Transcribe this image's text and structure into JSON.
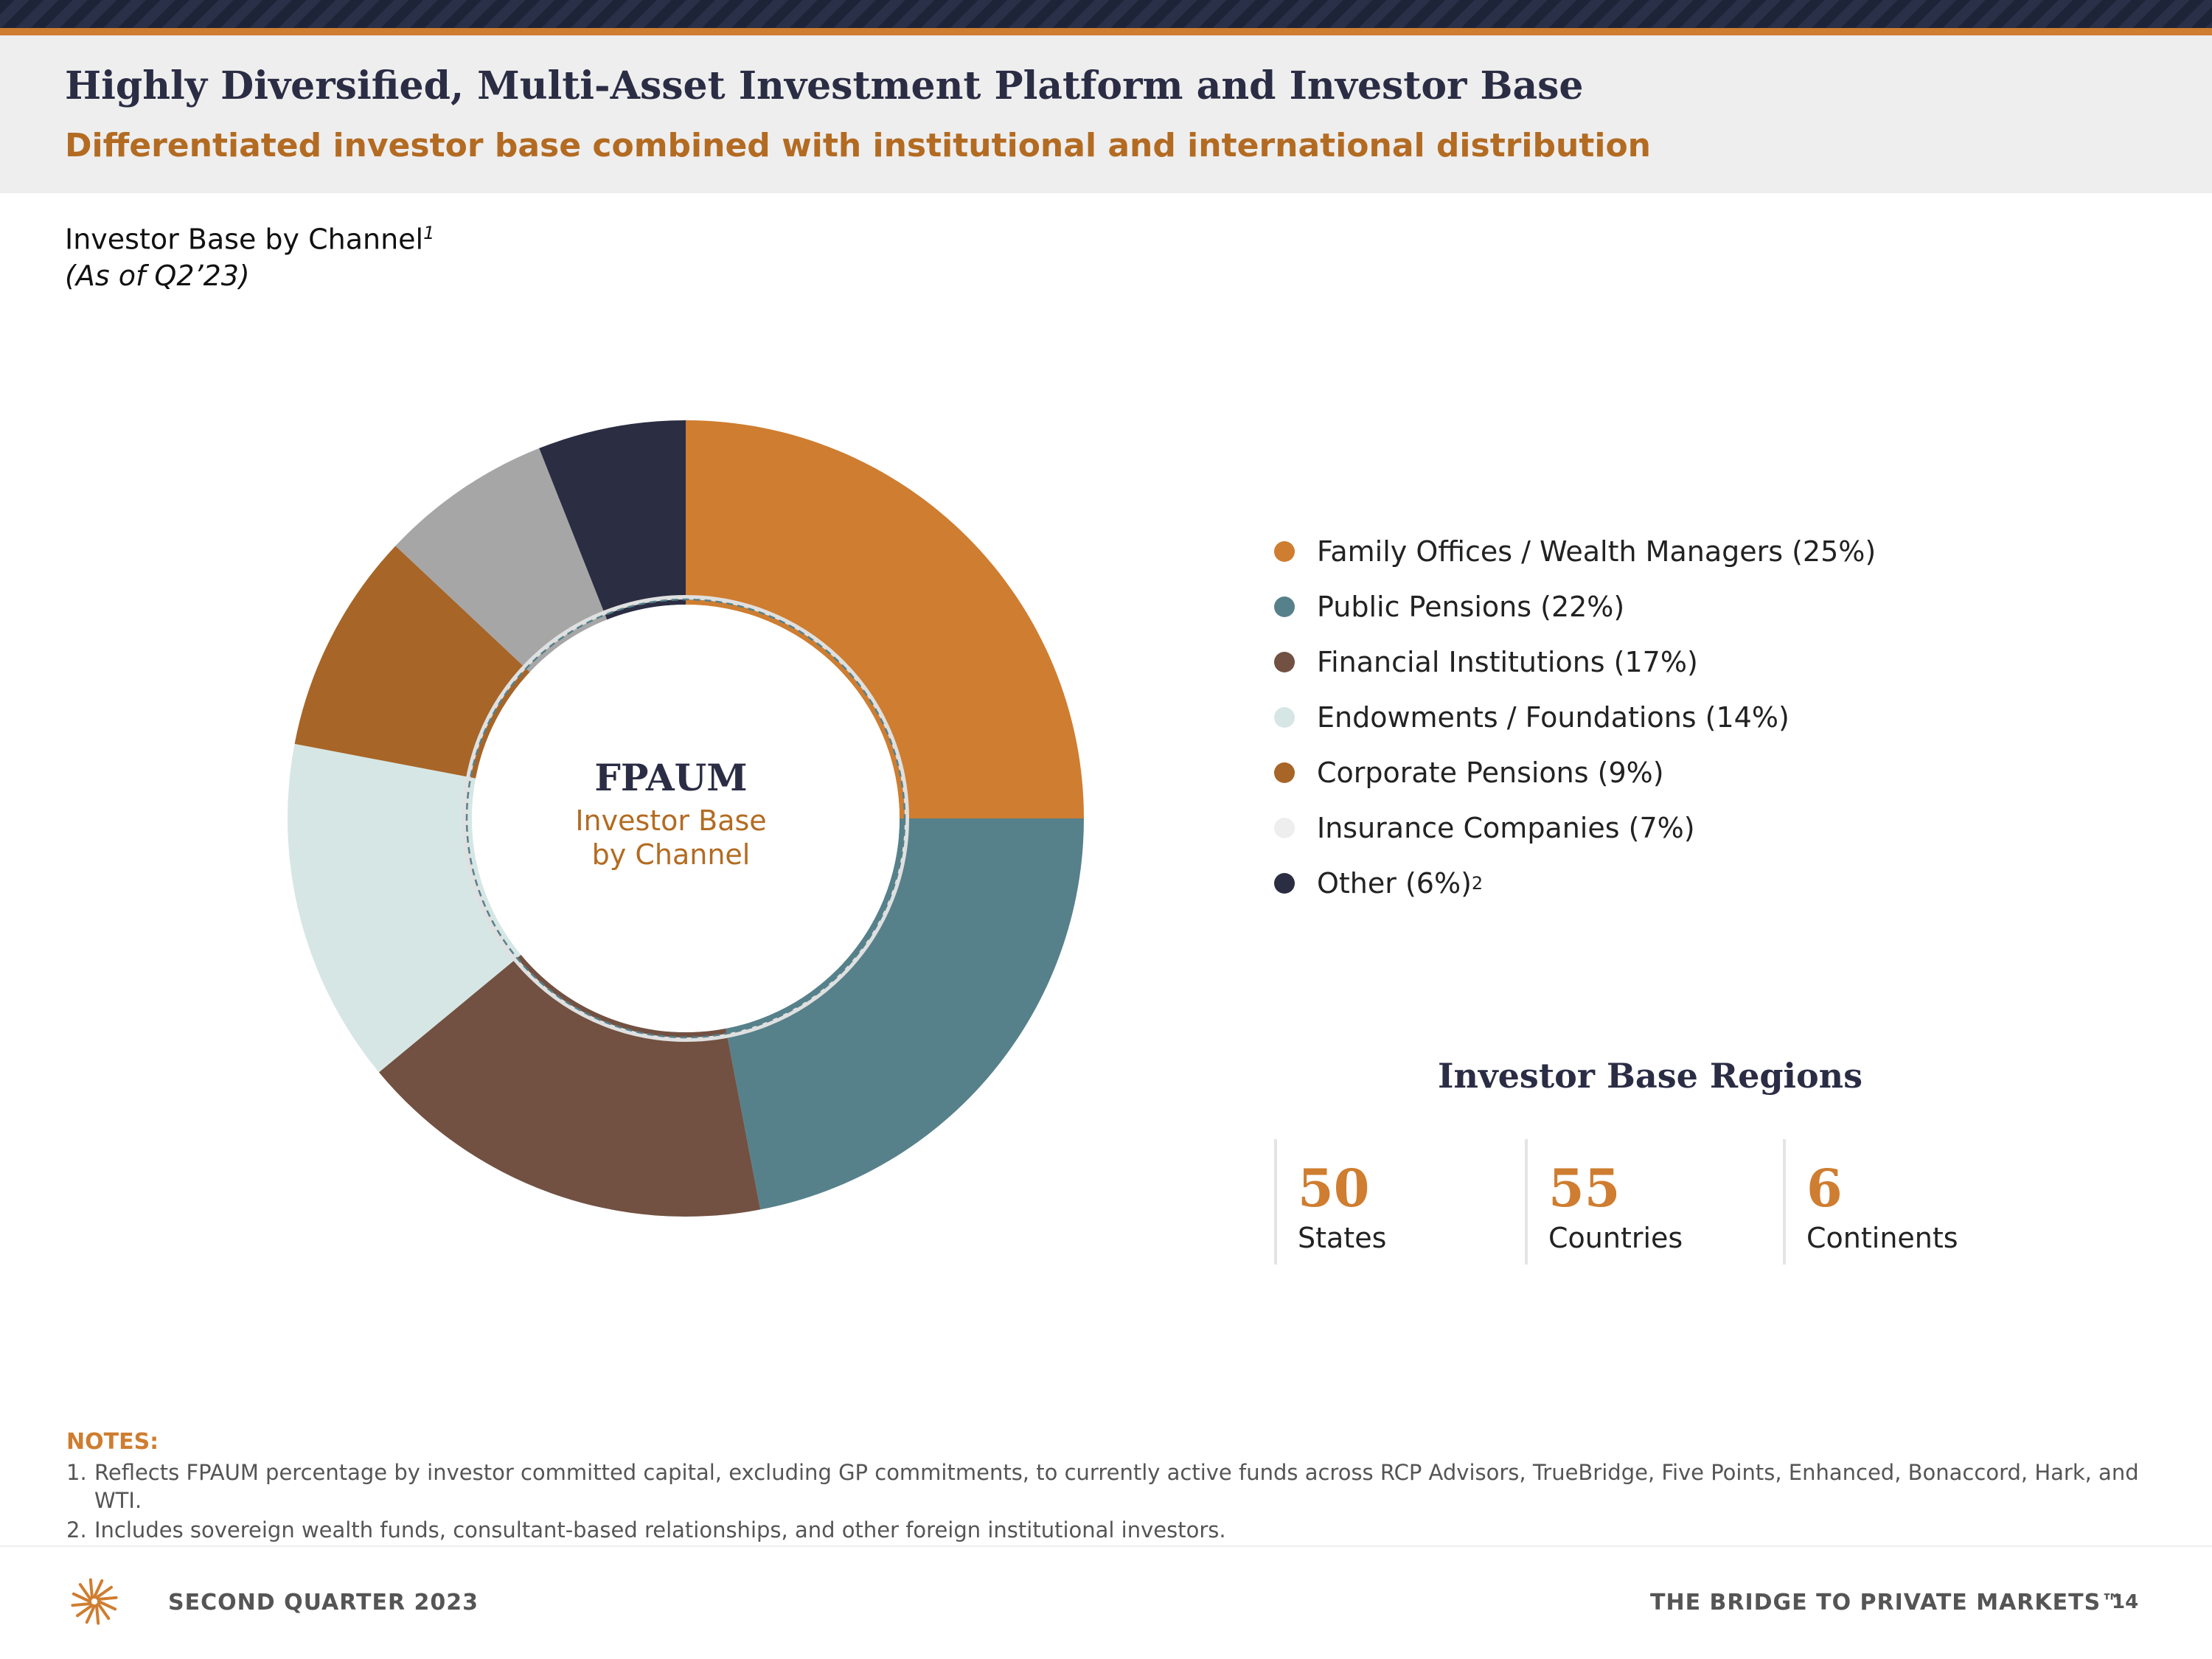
{
  "header": {
    "title": "Highly Diversified, Multi-Asset Investment Platform and Investor Base",
    "subtitle": "Differentiated investor base combined with institutional and international distribution"
  },
  "chart_section": {
    "label": "Investor Base by Channel",
    "label_sup": "1",
    "date": "(As of Q2’23)"
  },
  "chart_data": {
    "type": "pie",
    "variant": "donut",
    "center_title": "FPAUM",
    "center_subtitle_line1": "Investor Base",
    "center_subtitle_line2": "by Channel",
    "legend_position": "right",
    "categories": [
      "Family Offices / Wealth Managers",
      "Public Pensions",
      "Financial Institutions",
      "Endowments / Foundations",
      "Corporate Pensions",
      "Insurance Companies",
      "Other"
    ],
    "values": [
      25,
      22,
      17,
      14,
      9,
      7,
      6
    ],
    "unit": "%",
    "colors": [
      "#cf7d30",
      "#56818b",
      "#725142",
      "#d6e6e5",
      "#a76527",
      "#a6a6a6",
      "#2b2d43"
    ],
    "legend_colors": [
      "#cf7d30",
      "#56818b",
      "#725142",
      "#d6e6e5",
      "#a76527",
      "#eeeeee",
      "#2b2d43"
    ],
    "legend": [
      {
        "text": "Family Offices / Wealth Managers (25%)",
        "sup": ""
      },
      {
        "text": "Public Pensions (22%)",
        "sup": ""
      },
      {
        "text": "Financial Institutions (17%)",
        "sup": ""
      },
      {
        "text": "Endowments / Foundations (14%)",
        "sup": ""
      },
      {
        "text": "Corporate Pensions (9%)",
        "sup": ""
      },
      {
        "text": "Insurance Companies (7%)",
        "sup": ""
      },
      {
        "text": "Other (6%)",
        "sup": "2"
      }
    ]
  },
  "regions": {
    "title": "Investor Base Regions",
    "items": [
      {
        "value": "50",
        "label": "States"
      },
      {
        "value": "55",
        "label": "Countries"
      },
      {
        "value": "6",
        "label": "Continents"
      }
    ]
  },
  "notes": {
    "heading": "NOTES:",
    "items": [
      {
        "num": "1.",
        "line1": "Reflects FPAUM percentage by investor committed capital, excluding GP commitments, to currently active funds across RCP Advisors, TrueBridge, Five Points, Enhanced, Bonaccord, Hark, and",
        "line2": "WTI."
      },
      {
        "num": "2.",
        "line1": "Includes sovereign wealth funds, consultant-based relationships, and other foreign institutional investors.",
        "line2": ""
      }
    ]
  },
  "footer": {
    "left": "SECOND QUARTER 2023",
    "right": "THE BRIDGE TO PRIVATE MARKETS™",
    "page": "14"
  },
  "logo": {
    "icon": "starburst-logo-icon",
    "color": "#cf7d30"
  }
}
